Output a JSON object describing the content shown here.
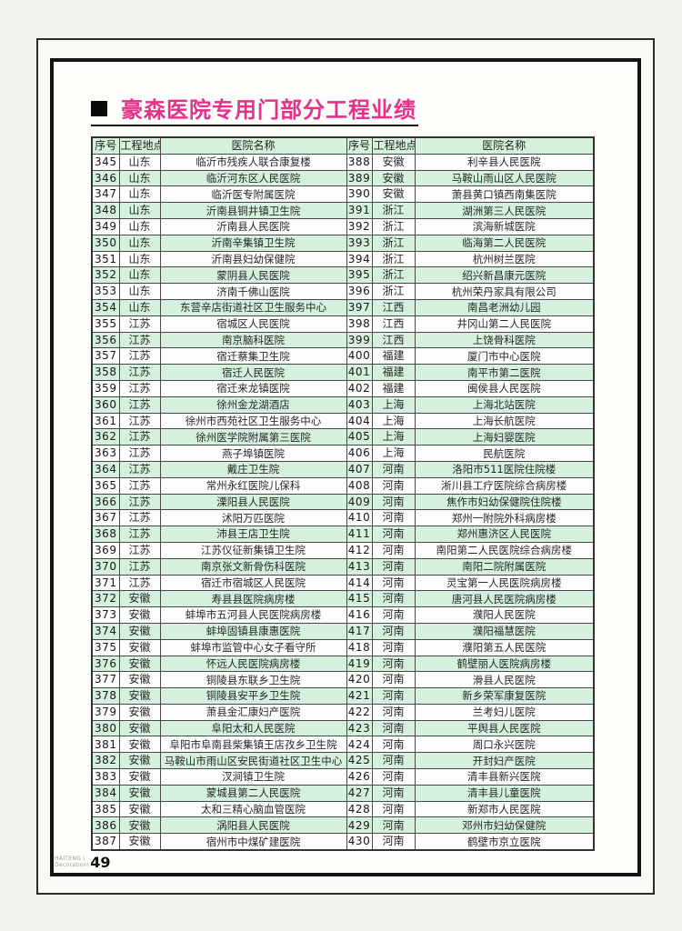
{
  "page": {
    "title": "豪森医院专用门部分工程业绩",
    "footer_brand_line1": "HAITENG \\",
    "footer_brand_line2": "Decoration\\",
    "footer_page_number": "49"
  },
  "colors": {
    "title_pink": "#e6308c",
    "row_green": "#d5f1de",
    "row_white": "#fdfefc",
    "grid_line": "#484848"
  },
  "table": {
    "headers": [
      "序号",
      "工程地点",
      "医院名称",
      "序号",
      "工程地点",
      "医院名称"
    ],
    "rows": [
      [
        "345",
        "山东",
        "临沂市残疾人联合康复楼",
        "388",
        "安徽",
        "利辛县人民医院"
      ],
      [
        "346",
        "山东",
        "临沂河东区人民医院",
        "389",
        "安徽",
        "马鞍山雨山区人民医院"
      ],
      [
        "347",
        "山东",
        "临沂医专附属医院",
        "390",
        "安徽",
        "萧县黄口镇西南集医院"
      ],
      [
        "348",
        "山东",
        "沂南县铜井镇卫生院",
        "391",
        "浙江",
        "湖洲第三人民医院"
      ],
      [
        "349",
        "山东",
        "沂南县人民医院",
        "392",
        "浙江",
        "滨海新城医院"
      ],
      [
        "350",
        "山东",
        "沂南辛集镇卫生院",
        "393",
        "浙江",
        "临海第二人民医院"
      ],
      [
        "351",
        "山东",
        "沂南县妇幼保健院",
        "394",
        "浙江",
        "杭州树兰医院"
      ],
      [
        "352",
        "山东",
        "蒙阴县人民医院",
        "395",
        "浙江",
        "绍兴新昌康元医院"
      ],
      [
        "353",
        "山东",
        "济南千佛山医院",
        "396",
        "浙江",
        "杭州荣丹家具有限公司"
      ],
      [
        "354",
        "山东",
        "东营辛店街道社区卫生服务中心",
        "397",
        "江西",
        "南昌老洲幼儿园"
      ],
      [
        "355",
        "江苏",
        "宿城区人民医院",
        "398",
        "江西",
        "井冈山第二人民医院"
      ],
      [
        "356",
        "江苏",
        "南京脑科医院",
        "399",
        "江西",
        "上饶骨科医院"
      ],
      [
        "357",
        "江苏",
        "宿迁蔡集卫生院",
        "400",
        "福建",
        "厦门市中心医院"
      ],
      [
        "358",
        "江苏",
        "宿迁人民医院",
        "401",
        "福建",
        "南平市第二医院"
      ],
      [
        "359",
        "江苏",
        "宿迁来龙镇医院",
        "402",
        "福建",
        "闽侯县人民医院"
      ],
      [
        "360",
        "江苏",
        "徐州金龙湖酒店",
        "403",
        "上海",
        "上海北站医院"
      ],
      [
        "361",
        "江苏",
        "徐州市西苑社区卫生服务中心",
        "404",
        "上海",
        "上海长航医院"
      ],
      [
        "362",
        "江苏",
        "徐州医学院附属第三医院",
        "405",
        "上海",
        "上海妇婴医院"
      ],
      [
        "363",
        "江苏",
        "燕子埠镇医院",
        "406",
        "上海",
        "民航医院"
      ],
      [
        "364",
        "江苏",
        "戴庄卫生院",
        "407",
        "河南",
        "洛阳市511医院住院楼"
      ],
      [
        "365",
        "江苏",
        "常州永红医院儿保科",
        "408",
        "河南",
        "淅川县工疗医院综合病房楼"
      ],
      [
        "366",
        "江苏",
        "溧阳县人民医院",
        "409",
        "河南",
        "焦作市妇幼保健院住院楼"
      ],
      [
        "367",
        "江苏",
        "沭阳万匹医院",
        "410",
        "河南",
        "郑州一附院外科病房楼"
      ],
      [
        "368",
        "江苏",
        "沛县王店卫生院",
        "411",
        "河南",
        "郑州惠济区人民医院"
      ],
      [
        "369",
        "江苏",
        "江苏仪征新集镇卫生院",
        "412",
        "河南",
        "南阳第二人民医院综合病房楼"
      ],
      [
        "370",
        "江苏",
        "南京张文新骨伤科医院",
        "413",
        "河南",
        "南阳二院附属医院"
      ],
      [
        "371",
        "江苏",
        "宿迁市宿城区人民医院",
        "414",
        "河南",
        "灵宝第一人民医院病房楼"
      ],
      [
        "372",
        "安徽",
        "寿县县医院病房楼",
        "415",
        "河南",
        "唐河县人民医院病房楼"
      ],
      [
        "373",
        "安徽",
        "蚌埠市五河县人民医院病房楼",
        "416",
        "河南",
        "濮阳人民医院"
      ],
      [
        "374",
        "安徽",
        "蚌埠固镇县康惠医院",
        "417",
        "河南",
        "濮阳福慧医院"
      ],
      [
        "375",
        "安徽",
        "蚌埠市监管中心女子看守所",
        "418",
        "河南",
        "濮阳第五人民医院"
      ],
      [
        "376",
        "安徽",
        "怀远人民医院病房楼",
        "419",
        "河南",
        "鹤壁丽人医院病房楼"
      ],
      [
        "377",
        "安徽",
        "铜陵县东联乡卫生院",
        "420",
        "河南",
        "滑县人民医院"
      ],
      [
        "378",
        "安徽",
        "铜陵县安平乡卫生院",
        "421",
        "河南",
        "新乡荣军康复医院"
      ],
      [
        "379",
        "安徽",
        "萧县金汇康妇产医院",
        "422",
        "河南",
        "兰考妇儿医院"
      ],
      [
        "380",
        "安徽",
        "阜阳太和人民医院",
        "423",
        "河南",
        "平舆县人民医院"
      ],
      [
        "381",
        "安徽",
        "阜阳市阜南县柴集镇王店孜乡卫生院",
        "424",
        "河南",
        "周口永兴医院"
      ],
      [
        "382",
        "安徽",
        "马鞍山市雨山区安民街道社区卫生中心",
        "425",
        "河南",
        "开封妇产医院"
      ],
      [
        "383",
        "安徽",
        "汊涧镇卫生院",
        "426",
        "河南",
        "清丰县新兴医院"
      ],
      [
        "384",
        "安徽",
        "蒙城县第二人民医院",
        "427",
        "河南",
        "清丰县儿童医院"
      ],
      [
        "385",
        "安徽",
        "太和三精心脑血管医院",
        "428",
        "河南",
        "新郑市人民医院"
      ],
      [
        "386",
        "安徽",
        "涡阳县人民医院",
        "429",
        "河南",
        "邓州市妇幼保健院"
      ],
      [
        "387",
        "安徽",
        "宿州市中煤矿建医院",
        "430",
        "河南",
        "鹤壁市京立医院"
      ]
    ]
  }
}
